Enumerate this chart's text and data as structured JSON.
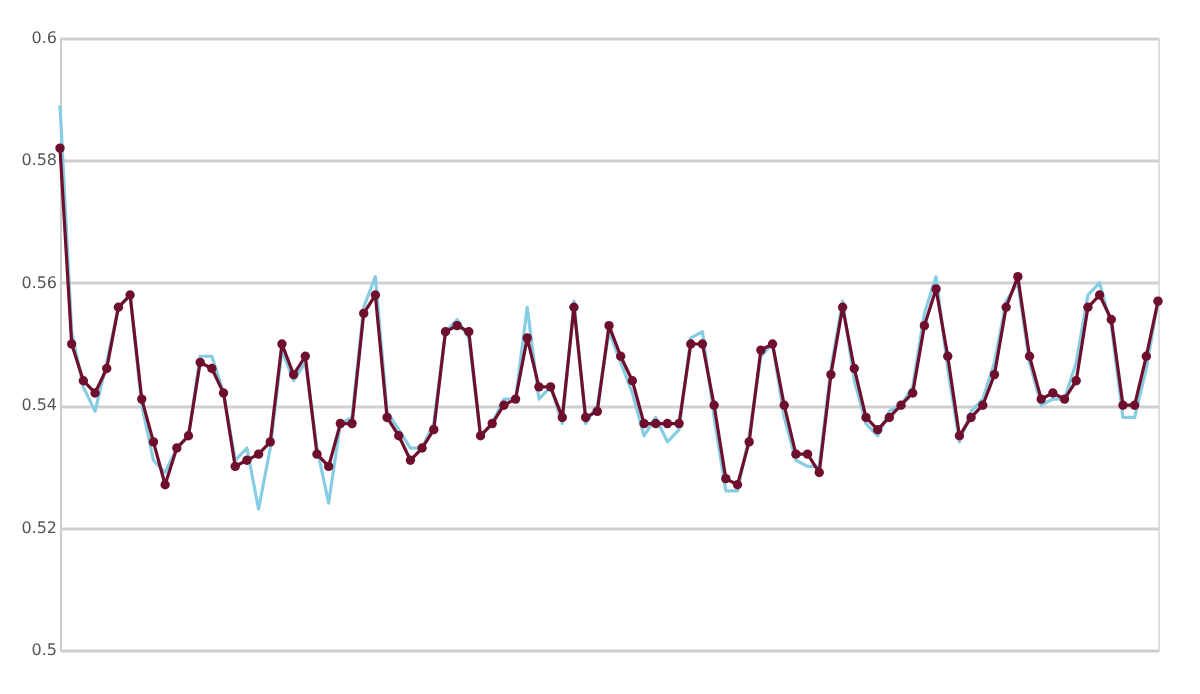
{
  "chart_data": {
    "type": "line",
    "categories": [
      null,
      null,
      null,
      null,
      null,
      null,
      null,
      null,
      null,
      null,
      null,
      null,
      null,
      null,
      null,
      null,
      null,
      null,
      null,
      null,
      null,
      null,
      null,
      null,
      null,
      null,
      null,
      null,
      null,
      null,
      null,
      null,
      null,
      null,
      null,
      null,
      null,
      null,
      null,
      null,
      null,
      null,
      null,
      null,
      null,
      null,
      null,
      null,
      null,
      null,
      null,
      null,
      null,
      null,
      null,
      null,
      null,
      null,
      null,
      null,
      null,
      null,
      null,
      null,
      null,
      null,
      null,
      null,
      null,
      null,
      null,
      null,
      null,
      null,
      null,
      null,
      null,
      null,
      null,
      null,
      null,
      null,
      null,
      null,
      null,
      null,
      null,
      null,
      null,
      null,
      null,
      null,
      null,
      null,
      null
    ],
    "series": [
      {
        "color": "#86cde3",
        "marker": "none",
        "values": [
          0.589,
          0.552,
          0.543,
          0.539,
          0.547,
          0.556,
          0.558,
          0.54,
          0.531,
          0.529,
          0.533,
          0.535,
          0.548,
          0.548,
          0.542,
          0.531,
          0.533,
          0.523,
          0.533,
          0.549,
          0.544,
          0.547,
          0.533,
          0.524,
          0.537,
          0.538,
          0.556,
          0.561,
          0.539,
          0.536,
          0.533,
          0.533,
          0.537,
          0.552,
          0.554,
          0.551,
          0.535,
          0.537,
          0.541,
          0.541,
          0.556,
          0.541,
          0.543,
          0.537,
          0.557,
          0.537,
          0.54,
          0.552,
          0.547,
          0.542,
          0.535,
          0.538,
          0.534,
          0.536,
          0.551,
          0.552,
          0.538,
          0.526,
          0.526,
          0.535,
          0.548,
          0.55,
          0.538,
          0.531,
          0.53,
          0.53,
          0.546,
          0.557,
          0.544,
          0.537,
          0.535,
          0.539,
          0.54,
          0.543,
          0.555,
          0.561,
          0.546,
          0.534,
          0.539,
          0.541,
          0.547,
          0.557,
          0.56,
          0.547,
          0.54,
          0.541,
          0.541,
          0.547,
          0.558,
          0.56,
          0.553,
          0.538,
          0.538,
          0.546,
          0.557
        ]
      },
      {
        "color": "#6e0f2d",
        "marker": "circle",
        "values": [
          0.582,
          0.55,
          0.544,
          0.542,
          0.546,
          0.556,
          0.558,
          0.541,
          0.534,
          0.527,
          0.533,
          0.535,
          0.547,
          0.546,
          0.542,
          0.53,
          0.531,
          0.532,
          0.534,
          0.55,
          0.545,
          0.548,
          0.532,
          0.53,
          0.537,
          0.537,
          0.555,
          0.558,
          0.538,
          0.535,
          0.531,
          0.533,
          0.536,
          0.552,
          0.553,
          0.552,
          0.535,
          0.537,
          0.54,
          0.541,
          0.551,
          0.543,
          0.543,
          0.538,
          0.556,
          0.538,
          0.539,
          0.553,
          0.548,
          0.544,
          0.537,
          0.537,
          0.537,
          0.537,
          0.55,
          0.55,
          0.54,
          0.528,
          0.527,
          0.534,
          0.549,
          0.55,
          0.54,
          0.532,
          0.532,
          0.529,
          0.545,
          0.556,
          0.546,
          0.538,
          0.536,
          0.538,
          0.54,
          0.542,
          0.553,
          0.559,
          0.548,
          0.535,
          0.538,
          0.54,
          0.545,
          0.556,
          0.561,
          0.548,
          0.541,
          0.542,
          0.541,
          0.544,
          0.556,
          0.558,
          0.554,
          0.54,
          0.54,
          0.548,
          0.557
        ]
      }
    ],
    "ylim": [
      0.5,
      0.6
    ],
    "yticks": [
      0.5,
      0.52,
      0.54,
      0.56,
      0.58,
      0.6
    ],
    "grid": "y"
  }
}
